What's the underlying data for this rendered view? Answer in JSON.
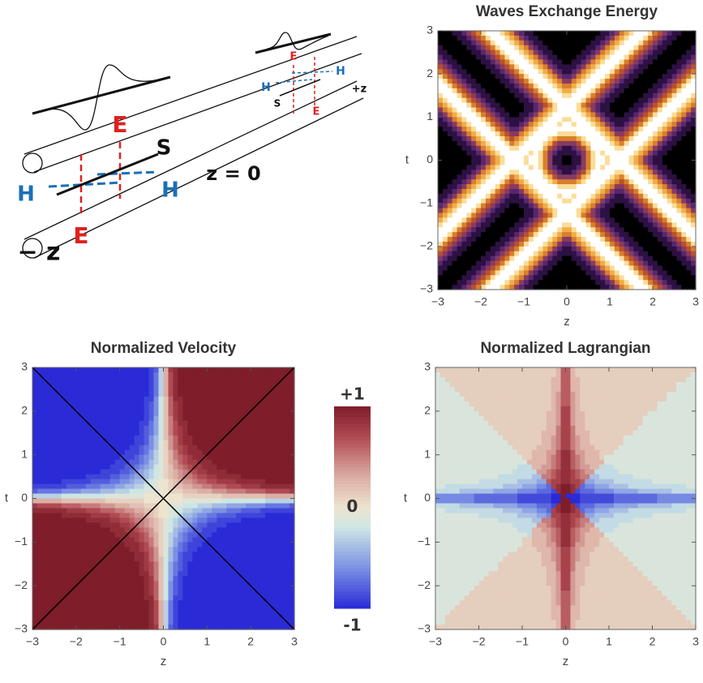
{
  "diagram": {
    "labels": [
      "E",
      "S",
      "H",
      "H",
      "E",
      "z = 0",
      "− z",
      "+z",
      "E",
      "H",
      "H",
      "S",
      "E"
    ]
  },
  "chart_data": [
    {
      "type": "contour",
      "title": "Waves Exchange Energy",
      "xlabel": "z",
      "ylabel": "t",
      "xlim": [
        -3,
        3
      ],
      "ylim": [
        -3,
        3
      ],
      "xticks": [
        {
          "value": -3,
          "label": "−3"
        },
        {
          "value": -2,
          "label": "−2"
        },
        {
          "value": -1,
          "label": "−1"
        },
        0,
        1,
        2,
        3
      ],
      "yticks": [
        {
          "value": -3,
          "label": "−3"
        },
        {
          "value": -2,
          "label": "−2"
        },
        {
          "value": -1,
          "label": "−1"
        },
        0,
        1,
        2,
        3
      ]
    },
    {
      "type": "contour",
      "title": "Normalized Velocity",
      "xlabel": "z",
      "ylabel": "t",
      "xlim": [
        -3,
        3
      ],
      "ylim": [
        -3,
        3
      ],
      "xticks": [
        {
          "value": -3,
          "label": "−3"
        },
        {
          "value": -2,
          "label": "−2"
        },
        {
          "value": -1,
          "label": "−1"
        },
        0,
        1,
        2,
        3
      ],
      "yticks": [
        {
          "value": -3,
          "label": "−3"
        },
        {
          "value": -2,
          "label": "−2"
        },
        {
          "value": -1,
          "label": "−1"
        },
        0,
        1,
        2,
        3
      ],
      "clim": [
        -1,
        1
      ],
      "colorbar_ticks": [
        {
          "value": 1,
          "label": "+1"
        },
        0,
        {
          "value": -1,
          "label": "-1"
        }
      ]
    },
    {
      "type": "contour",
      "title": "Normalized Lagrangian",
      "xlabel": "z",
      "ylabel": "t",
      "xlim": [
        -3,
        3
      ],
      "ylim": [
        -3,
        3
      ],
      "xticks": [
        {
          "value": -3,
          "label": "−3"
        },
        {
          "value": -2,
          "label": "−2"
        },
        {
          "value": -1,
          "label": "−1"
        },
        0,
        1,
        2,
        3
      ],
      "yticks": [
        {
          "value": -3,
          "label": "−3"
        },
        {
          "value": -2,
          "label": "−2"
        },
        {
          "value": -1,
          "label": "−1"
        },
        0,
        1,
        2,
        3
      ]
    }
  ]
}
